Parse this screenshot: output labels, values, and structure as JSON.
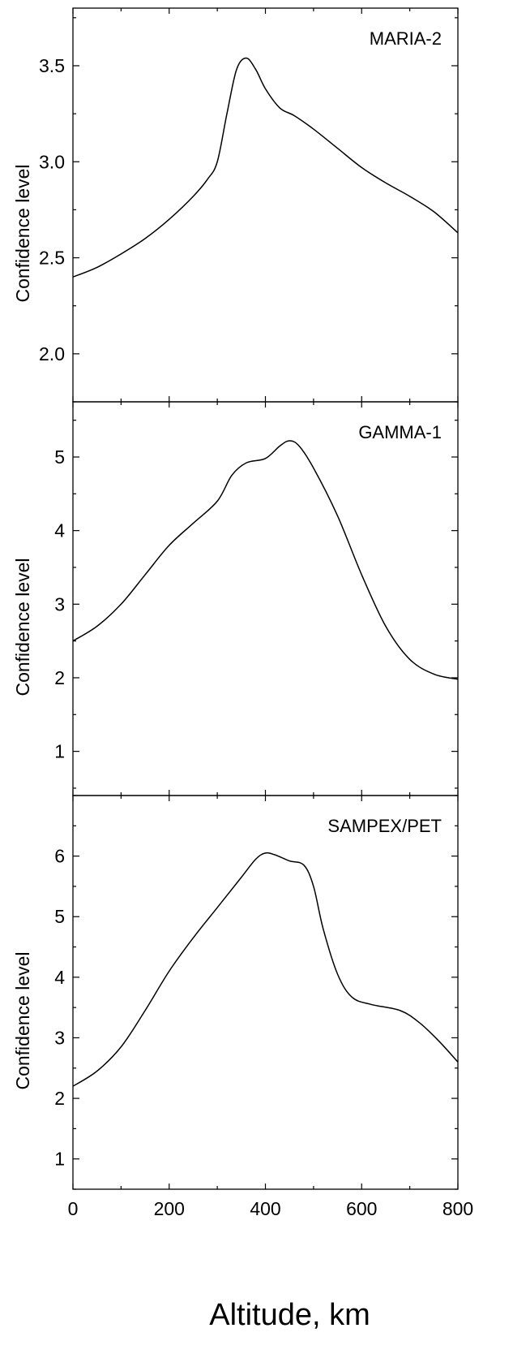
{
  "chart_data": [
    {
      "type": "line",
      "title": "MARIA-2",
      "ylabel": "Confidence level",
      "xlabel": "",
      "xlim": [
        0,
        800
      ],
      "ylim": [
        1.75,
        3.8
      ],
      "y_ticks": [
        2.0,
        2.5,
        3.0,
        3.5
      ],
      "y_tick_labels": [
        "2.0",
        "2.5",
        "3.0",
        "3.5"
      ],
      "x": [
        0,
        50,
        100,
        150,
        200,
        250,
        280,
        300,
        320,
        340,
        360,
        380,
        400,
        430,
        460,
        500,
        550,
        600,
        650,
        700,
        750,
        800
      ],
      "y": [
        2.4,
        2.45,
        2.52,
        2.6,
        2.7,
        2.82,
        2.91,
        3.0,
        3.25,
        3.48,
        3.54,
        3.48,
        3.38,
        3.28,
        3.24,
        3.17,
        3.07,
        2.97,
        2.89,
        2.82,
        2.74,
        2.63
      ]
    },
    {
      "type": "line",
      "title": "GAMMA-1",
      "ylabel": "Confidence level",
      "xlabel": "",
      "xlim": [
        0,
        800
      ],
      "ylim": [
        0.4,
        5.75
      ],
      "y_ticks": [
        1,
        2,
        3,
        4,
        5
      ],
      "y_tick_labels": [
        "1",
        "2",
        "3",
        "4",
        "5"
      ],
      "x": [
        0,
        50,
        100,
        150,
        200,
        250,
        300,
        330,
        360,
        400,
        430,
        450,
        470,
        500,
        550,
        600,
        650,
        700,
        750,
        800
      ],
      "y": [
        2.5,
        2.7,
        3.0,
        3.4,
        3.8,
        4.1,
        4.4,
        4.75,
        4.92,
        4.98,
        5.15,
        5.22,
        5.15,
        4.85,
        4.2,
        3.4,
        2.7,
        2.25,
        2.05,
        1.98
      ]
    },
    {
      "type": "line",
      "title": "SAMPEX/PET",
      "ylabel": "Confidence level",
      "xlabel": "Altitude, km",
      "xlim": [
        0,
        800
      ],
      "ylim": [
        0.5,
        7.0
      ],
      "y_ticks": [
        1,
        2,
        3,
        4,
        5,
        6
      ],
      "y_tick_labels": [
        "1",
        "2",
        "3",
        "4",
        "5",
        "6"
      ],
      "x_ticks": [
        0,
        200,
        400,
        600,
        800
      ],
      "x_tick_labels": [
        "0",
        "200",
        "400",
        "600",
        "800"
      ],
      "x": [
        0,
        50,
        100,
        150,
        200,
        250,
        300,
        350,
        380,
        400,
        420,
        450,
        480,
        500,
        520,
        550,
        580,
        620,
        680,
        720,
        760,
        800
      ],
      "y": [
        2.2,
        2.45,
        2.85,
        3.45,
        4.1,
        4.65,
        5.15,
        5.65,
        5.95,
        6.05,
        6.02,
        5.92,
        5.85,
        5.5,
        4.8,
        4.05,
        3.67,
        3.55,
        3.45,
        3.25,
        2.95,
        2.6
      ]
    }
  ]
}
